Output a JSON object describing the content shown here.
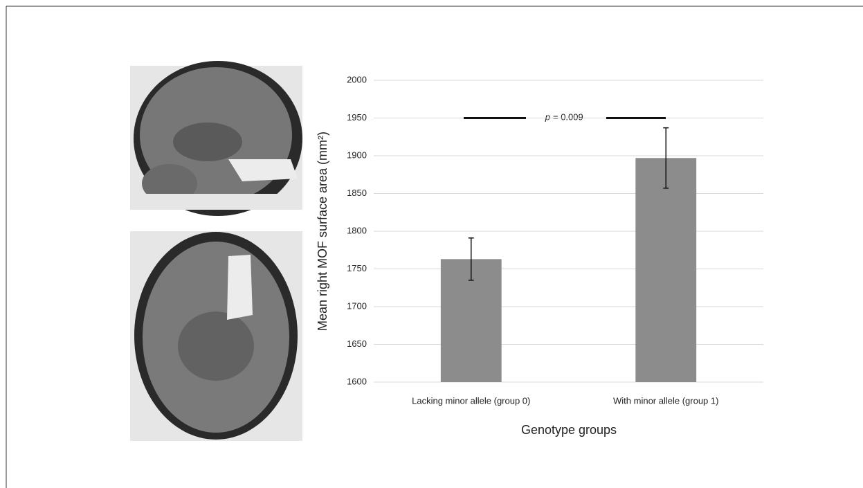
{
  "chart_data": {
    "type": "bar",
    "categories": [
      "Lacking minor allele (group 0)",
      "With minor allele (group 1)"
    ],
    "values": [
      1763,
      1897
    ],
    "errors": [
      28,
      40
    ],
    "color": "#8c8c8d",
    "ylim": [
      1600,
      2000
    ],
    "yticks": [
      1600,
      1650,
      1700,
      1750,
      1800,
      1850,
      1900,
      1950,
      2000
    ],
    "grid": true,
    "xlabel": "Genotype groups",
    "ylabel": "Mean right MOF surface area (mm²)",
    "annotation": {
      "symbol": "p",
      "text": "= 0.009",
      "y": 1950
    }
  }
}
